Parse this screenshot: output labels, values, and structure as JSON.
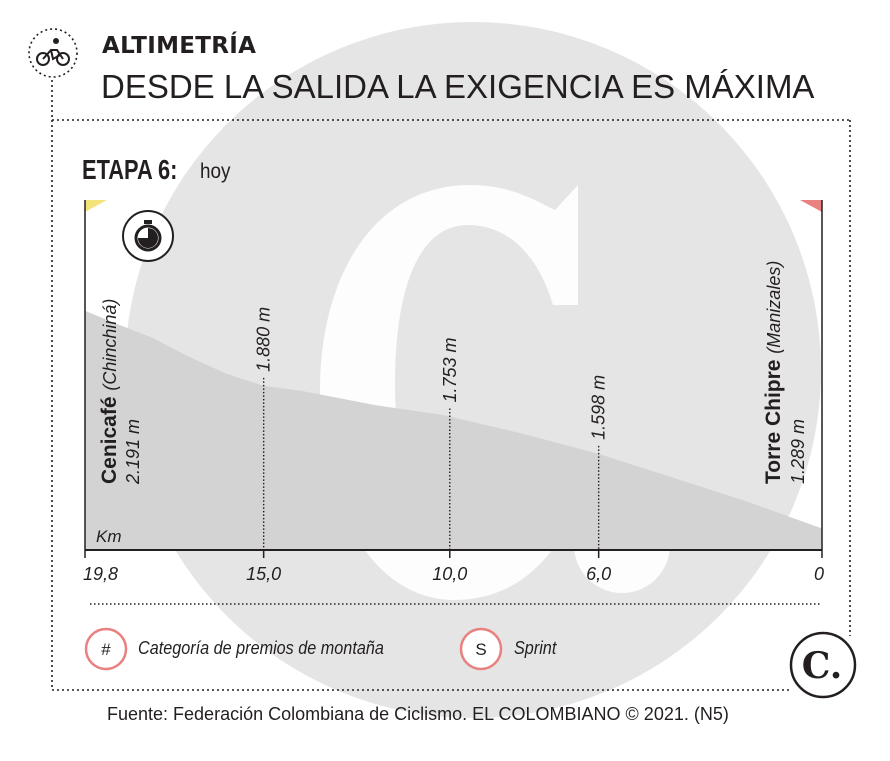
{
  "header": {
    "kicker": "ALTIMETRÍA",
    "headline": "DESDE LA SALIDA LA EXIGENCIA ES MÁXIMA",
    "icon": "cyclist-icon"
  },
  "stage": {
    "title": "ETAPA 6:",
    "subtitle": "hoy",
    "type_icon": "stopwatch-icon"
  },
  "chart_data": {
    "type": "area",
    "xlabel": "Km",
    "x_ticks": [
      {
        "value": 0,
        "label": "0"
      },
      {
        "value": 6.0,
        "label": "6,0"
      },
      {
        "value": 10.0,
        "label": "10,0"
      },
      {
        "value": 15.0,
        "label": "15,0"
      },
      {
        "value": 19.8,
        "label": "19,8"
      }
    ],
    "xlim": [
      0,
      19.8
    ],
    "ylim": [
      1200,
      2650
    ],
    "profile": {
      "x": [
        0,
        2.0,
        4.0,
        6.0,
        8.0,
        10.0,
        10.2,
        12.0,
        14.0,
        15.0,
        16.0,
        17.0,
        18.0,
        19.0,
        19.8
      ],
      "y": [
        1289,
        1400,
        1500,
        1598,
        1680,
        1753,
        1760,
        1800,
        1860,
        1880,
        1930,
        2000,
        2080,
        2140,
        2191
      ]
    },
    "start": {
      "name": "Torre Chipre",
      "place": "(Manizales)",
      "elevation": "1.289 m"
    },
    "finish": {
      "name": "Cenicafé",
      "place": "(Chinchiná)",
      "elevation": "2.191 m"
    },
    "markers": [
      {
        "km": 6.0,
        "label": "1.598 m"
      },
      {
        "km": 10.0,
        "label": "1.753 m"
      },
      {
        "km": 15.0,
        "label": "1.880 m"
      }
    ],
    "flags": {
      "left": "#f4e27a",
      "right": "#e8817f"
    },
    "colors": {
      "fill": "#d4d3d3",
      "axis": "#231f20",
      "accent": "#e8817f"
    }
  },
  "legend": {
    "mountain_symbol": "#",
    "mountain_label": "Categoría de premios de montaña",
    "sprint_symbol": "S",
    "sprint_label": "Sprint"
  },
  "source": "Fuente: Federación Colombiana de Ciclismo. EL COLOMBIANO © 2021. (N5)",
  "logo": "C."
}
